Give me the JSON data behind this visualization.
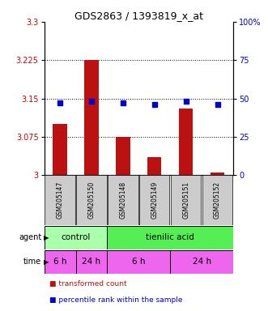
{
  "title": "GDS2863 / 1393819_x_at",
  "samples": [
    "GSM205147",
    "GSM205150",
    "GSM205148",
    "GSM205149",
    "GSM205151",
    "GSM205152"
  ],
  "bar_values": [
    3.1,
    3.225,
    3.075,
    3.035,
    3.13,
    3.005
  ],
  "percentile_values": [
    47,
    48,
    47,
    46,
    48,
    46
  ],
  "ylim_left": [
    3.0,
    3.3
  ],
  "ylim_right": [
    0,
    100
  ],
  "yticks_left": [
    3.0,
    3.075,
    3.15,
    3.225,
    3.3
  ],
  "ytick_labels_left": [
    "3",
    "3.075",
    "3.15",
    "3.225",
    "3.3"
  ],
  "yticks_right": [
    0,
    25,
    50,
    75,
    100
  ],
  "ytick_labels_right": [
    "0",
    "25",
    "50",
    "75",
    "100%"
  ],
  "hlines": [
    3.075,
    3.15,
    3.225
  ],
  "bar_color": "#bb1111",
  "percentile_color": "#0000cc",
  "bar_width": 0.45,
  "agent_color_control": "#aaffaa",
  "agent_color_tienilic": "#55ee55",
  "time_color": "#ee66ee",
  "tick_label_color_left": "#cc0000",
  "tick_label_color_right": "#0000cc",
  "sample_box_color": "#cccccc",
  "legend_items": [
    {
      "color": "#bb1111",
      "label": "transformed count"
    },
    {
      "color": "#0000cc",
      "label": "percentile rank within the sample"
    }
  ]
}
